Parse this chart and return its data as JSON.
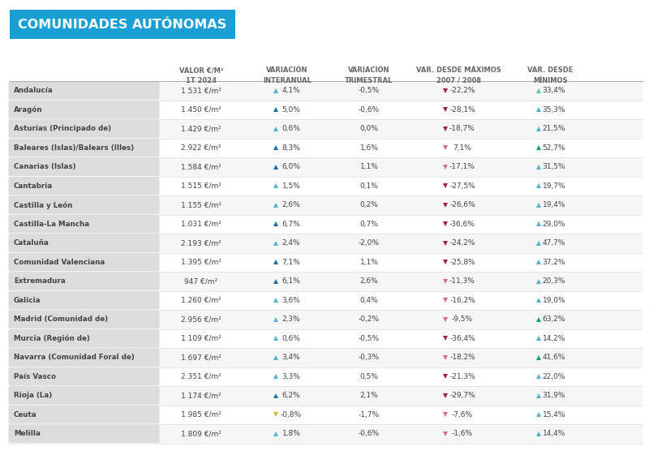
{
  "title": "COMUNIDADES AUTÓNOMAS",
  "title_bg": "#1A9FD4",
  "title_color": "#FFFFFF",
  "col_headers": [
    "VALOR €/M²\n1T 2024",
    "VARIACIÓN\nINTERANUAL",
    "VARIACIÓN\nTRIMESTRAL",
    "VAR. DESDE MÁXIMOS\n2007 / 2008",
    "VAR. DESDE\nMÍNIMOS"
  ],
  "rows": [
    {
      "region": "Andalucía",
      "valor": "1.531 €/m²",
      "var_int_arrow": "up_light",
      "var_int": "4,1%",
      "var_trim": "-0,5%",
      "max_arrow": "down_dark",
      "var_max": "-22,2%",
      "min_arrow": "up_light_green",
      "var_min": "33,4%"
    },
    {
      "region": "Aragón",
      "valor": "1.450 €/m²",
      "var_int_arrow": "up_dark",
      "var_int": "5,0%",
      "var_trim": "-0,6%",
      "max_arrow": "down_dark",
      "var_max": "-28,1%",
      "min_arrow": "up_light",
      "var_min": "35,3%"
    },
    {
      "region": "Asturias (Principado de)",
      "valor": "1.429 €/m²",
      "var_int_arrow": "up_light",
      "var_int": "0,6%",
      "var_trim": "0,0%",
      "max_arrow": "down_dark",
      "var_max": "-18,7%",
      "min_arrow": "up_light",
      "var_min": "21,5%"
    },
    {
      "region": "Baleares (Islas)/Balears (Illes)",
      "valor": "2.922 €/m²",
      "var_int_arrow": "up_dark",
      "var_int": "8,3%",
      "var_trim": "1,6%",
      "max_arrow": "down_pink",
      "var_max": "7,1%",
      "min_arrow": "up_dark_green",
      "var_min": "52,7%"
    },
    {
      "region": "Canarias (Islas)",
      "valor": "1.584 €/m²",
      "var_int_arrow": "up_dark",
      "var_int": "6,0%",
      "var_trim": "1,1%",
      "max_arrow": "down_pink",
      "var_max": "-17,1%",
      "min_arrow": "up_light",
      "var_min": "31,5%"
    },
    {
      "region": "Cantabria",
      "valor": "1.515 €/m²",
      "var_int_arrow": "up_light",
      "var_int": "1,5%",
      "var_trim": "0,1%",
      "max_arrow": "down_dark",
      "var_max": "-27,5%",
      "min_arrow": "up_light",
      "var_min": "19,7%"
    },
    {
      "region": "Castilla y León",
      "valor": "1.155 €/m²",
      "var_int_arrow": "up_light",
      "var_int": "2,6%",
      "var_trim": "0,2%",
      "max_arrow": "down_dark",
      "var_max": "-26,6%",
      "min_arrow": "up_light",
      "var_min": "19,4%"
    },
    {
      "region": "Castilla-La Mancha",
      "valor": "1.031 €/m²",
      "var_int_arrow": "up_dark",
      "var_int": "6,7%",
      "var_trim": "0,7%",
      "max_arrow": "down_dark",
      "var_max": "-36,6%",
      "min_arrow": "up_light",
      "var_min": "29,0%"
    },
    {
      "region": "Cataluña",
      "valor": "2.193 €/m²",
      "var_int_arrow": "up_light",
      "var_int": "2,4%",
      "var_trim": "-2,0%",
      "max_arrow": "down_dark",
      "var_max": "-24,2%",
      "min_arrow": "up_light",
      "var_min": "47,7%"
    },
    {
      "region": "Comunidad Valenciana",
      "valor": "1.395 €/m²",
      "var_int_arrow": "up_dark",
      "var_int": "7,1%",
      "var_trim": "1,1%",
      "max_arrow": "down_dark",
      "var_max": "-25,8%",
      "min_arrow": "up_light",
      "var_min": "37,2%"
    },
    {
      "region": "Extremadura",
      "valor": "947 €/m²",
      "var_int_arrow": "up_dark",
      "var_int": "6,1%",
      "var_trim": "2,6%",
      "max_arrow": "down_pink",
      "var_max": "-11,3%",
      "min_arrow": "up_light",
      "var_min": "20,3%"
    },
    {
      "region": "Galicia",
      "valor": "1.260 €/m²",
      "var_int_arrow": "up_light",
      "var_int": "3,6%",
      "var_trim": "0,4%",
      "max_arrow": "down_pink",
      "var_max": "-16,2%",
      "min_arrow": "up_light",
      "var_min": "19,0%"
    },
    {
      "region": "Madrid (Comunidad de)",
      "valor": "2.956 €/m²",
      "var_int_arrow": "up_light",
      "var_int": "2,3%",
      "var_trim": "-0,2%",
      "max_arrow": "down_pink",
      "var_max": "-9,5%",
      "min_arrow": "up_dark_green",
      "var_min": "63,2%"
    },
    {
      "region": "Murcia (Región de)",
      "valor": "1.109 €/m²",
      "var_int_arrow": "up_light",
      "var_int": "0,6%",
      "var_trim": "-0,5%",
      "max_arrow": "down_dark",
      "var_max": "-36,4%",
      "min_arrow": "up_light",
      "var_min": "14,2%"
    },
    {
      "region": "Navarra (Comunidad Foral de)",
      "valor": "1.697 €/m²",
      "var_int_arrow": "up_light",
      "var_int": "3,4%",
      "var_trim": "-0,3%",
      "max_arrow": "down_pink",
      "var_max": "-18,2%",
      "min_arrow": "up_dark_green",
      "var_min": "41,6%"
    },
    {
      "region": "País Vasco",
      "valor": "2.351 €/m²",
      "var_int_arrow": "up_light",
      "var_int": "3,3%",
      "var_trim": "0,5%",
      "max_arrow": "down_dark",
      "var_max": "-21,3%",
      "min_arrow": "up_light",
      "var_min": "22,0%"
    },
    {
      "region": "Rioja (La)",
      "valor": "1.174 €/m²",
      "var_int_arrow": "up_dark",
      "var_int": "6,2%",
      "var_trim": "2,1%",
      "max_arrow": "down_dark",
      "var_max": "-29,7%",
      "min_arrow": "up_light",
      "var_min": "31,9%"
    },
    {
      "region": "Ceuta",
      "valor": "1.985 €/m²",
      "var_int_arrow": "down_yellow",
      "var_int": "-0,8%",
      "var_trim": "-1,7%",
      "max_arrow": "down_pink",
      "var_max": "-7,6%",
      "min_arrow": "up_light",
      "var_min": "15,4%"
    },
    {
      "region": "Melilla",
      "valor": "1.809 €/m²",
      "var_int_arrow": "up_light",
      "var_int": "1,8%",
      "var_trim": "-0,6%",
      "max_arrow": "down_pink",
      "var_max": "-1,6%",
      "min_arrow": "up_light",
      "var_min": "14,4%"
    }
  ],
  "arrow_colors": {
    "up_dark": "#1A6EAD",
    "up_light": "#52B0D0",
    "up_light_green": "#5DC8A8",
    "up_dark_green": "#1A9E78",
    "down_dark": "#9B2335",
    "down_pink": "#D07080",
    "down_yellow": "#D4B830"
  },
  "bg_color": "#FFFFFF",
  "label_bg": "#DCDCDC",
  "header_color": "#666666",
  "text_color": "#444444",
  "divider_color": "#DDDDDD",
  "fig_w": 8.0,
  "fig_h": 5.61,
  "dpi": 100
}
